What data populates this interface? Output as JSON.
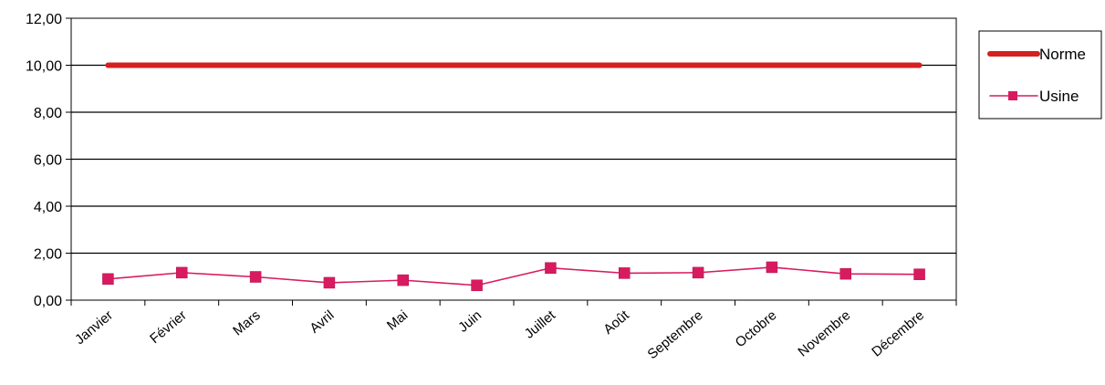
{
  "chart_data": {
    "type": "line",
    "categories": [
      "Janvier",
      "Février",
      "Mars",
      "Avril",
      "Mai",
      "Juin",
      "Juillet",
      "Août",
      "Septembre",
      "Octobre",
      "Novembre",
      "Décembre"
    ],
    "series": [
      {
        "name": "Norme",
        "values": [
          10.0,
          10.0,
          10.0,
          10.0,
          10.0,
          10.0,
          10.0,
          10.0,
          10.0,
          10.0,
          10.0,
          10.0
        ],
        "color": "#d42020",
        "marker": "none"
      },
      {
        "name": "Usine",
        "values": [
          0.9,
          1.17,
          0.99,
          0.74,
          0.85,
          0.63,
          1.37,
          1.15,
          1.17,
          1.4,
          1.12,
          1.1
        ],
        "color": "#d81b60",
        "marker": "square"
      }
    ],
    "ylim": [
      0,
      12
    ],
    "ytick_labels": [
      "0,00",
      "2,00",
      "4,00",
      "6,00",
      "8,00",
      "10,00",
      "12,00"
    ],
    "grid": true,
    "legend_position": "right"
  }
}
